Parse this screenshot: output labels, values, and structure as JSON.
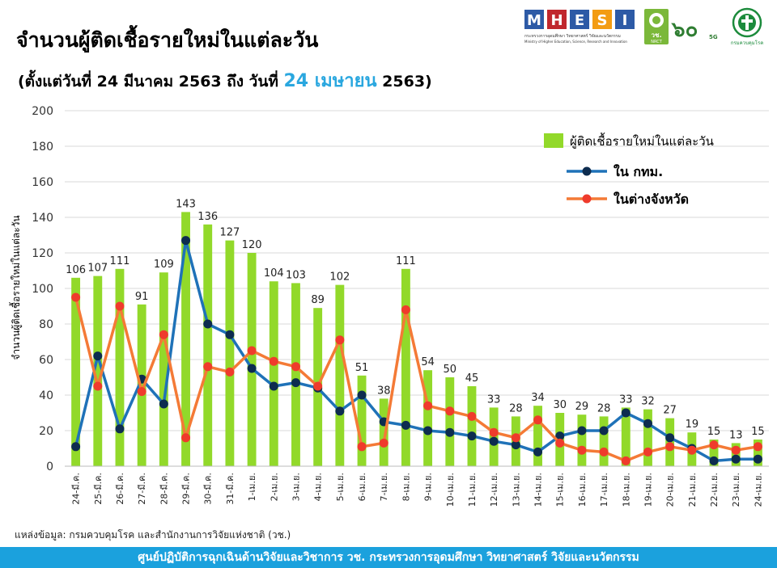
{
  "header": {
    "title": "จำนวนผู้ติดเชื้อรายใหม่ในแต่ละวัน",
    "subtitle_pre": "(ตั้งแต่วันที่ 24 มีนาคม 2563 ถึง วันที่ ",
    "subtitle_hl": "24 เมษายน",
    "subtitle_post": " 2563)"
  },
  "logos": {
    "mhesi_letters": [
      "M",
      "H",
      "E",
      "S",
      "I"
    ],
    "mhesi_colors": [
      "#2d5aa6",
      "#c0272d",
      "#2d5aa6",
      "#f39c12",
      "#2d5aa6"
    ],
    "mhesi_caption1": "กระทรวงการอุดมศึกษา วิทยาศาสตร์ วิจัยและนวัตกรรม",
    "mhesi_caption2": "Ministry of Higher Education, Science, Research and Innovation",
    "nrct_label": "วช.",
    "nrct_sub": "NRCT",
    "anniv_number": "๖๐",
    "anniv_sub": "5G",
    "ddc_caption": "กรมควบคุมโรค"
  },
  "chart_data": {
    "type": "bar",
    "ylabel": "จำนวนผู้ติดเชื้อรายใหม่ในแต่ละวัน",
    "ylim": [
      0,
      200
    ],
    "yticks": [
      0,
      20,
      40,
      60,
      80,
      100,
      120,
      140,
      160,
      180,
      200
    ],
    "grid": true,
    "legend_position": "top-right",
    "categories": [
      "24-มี.ค.",
      "25-มี.ค.",
      "26-มี.ค.",
      "27-มี.ค.",
      "28-มี.ค.",
      "29-มี.ค.",
      "30-มี.ค.",
      "31-มี.ค.",
      "1-เม.ย.",
      "2-เม.ย.",
      "3-เม.ย.",
      "4-เม.ย.",
      "5-เม.ย.",
      "6-เม.ย.",
      "7-เม.ย.",
      "8-เม.ย.",
      "9-เม.ย.",
      "10-เม.ย.",
      "11-เม.ย.",
      "12-เม.ย.",
      "13-เม.ย.",
      "14-เม.ย.",
      "15-เม.ย.",
      "16-เม.ย.",
      "17-เม.ย.",
      "18-เม.ย.",
      "19-เม.ย.",
      "20-เม.ย.",
      "21-เม.ย.",
      "22-เม.ย.",
      "23-เม.ย.",
      "24-เม.ย."
    ],
    "series": [
      {
        "name": "ผู้ติดเชื้อรายใหม่ในแต่ละวัน",
        "type": "bar",
        "color": "#92d92a",
        "values": [
          106,
          107,
          111,
          91,
          109,
          143,
          136,
          127,
          120,
          104,
          103,
          89,
          102,
          51,
          38,
          111,
          54,
          50,
          45,
          33,
          28,
          34,
          30,
          29,
          28,
          33,
          32,
          27,
          19,
          15,
          13,
          15
        ]
      },
      {
        "name": "ใน กทม.",
        "type": "line",
        "color": "#1f72b8",
        "marker_color": "#0d2c4f",
        "values": [
          11,
          62,
          21,
          49,
          35,
          127,
          80,
          74,
          55,
          45,
          47,
          44,
          31,
          40,
          25,
          23,
          20,
          19,
          17,
          14,
          12,
          8,
          17,
          20,
          20,
          30,
          24,
          16,
          10,
          3,
          4,
          4
        ]
      },
      {
        "name": "ในต่างจังหวัด",
        "type": "line",
        "color": "#f47a36",
        "marker_color": "#ef3b2c",
        "values": [
          95,
          45,
          90,
          42,
          74,
          16,
          56,
          53,
          65,
          59,
          56,
          45,
          71,
          11,
          13,
          88,
          34,
          31,
          28,
          19,
          16,
          26,
          13,
          9,
          8,
          3,
          8,
          11,
          9,
          12,
          9,
          11
        ]
      }
    ]
  },
  "source_text": "แหล่งข้อมูล: กรมควบคุมโรค และสำนักงานการวิจัยแห่งชาติ (วช.)",
  "footer_text": "ศูนย์ปฏิบัติการฉุกเฉินด้านวิจัยและวิชาการ   วช.   กระทรวงการอุดมศึกษา วิทยาศาสตร์ วิจัยและนวัตกรรม"
}
